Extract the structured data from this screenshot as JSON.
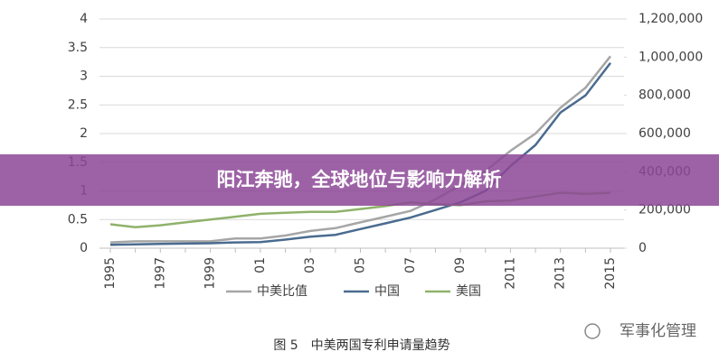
{
  "chart_data": {
    "type": "line",
    "categories": [
      "1995",
      null,
      "1997",
      null,
      "1999",
      null,
      "01",
      null,
      "03",
      null,
      "05",
      null,
      "07",
      null,
      "09",
      null,
      "2011",
      null,
      "2013",
      null,
      "2015"
    ],
    "series": [
      {
        "name": "中美比值",
        "color": "#a6a6a6",
        "values": [
          0.1,
          0.12,
          0.12,
          0.12,
          0.12,
          0.17,
          0.17,
          0.22,
          0.3,
          0.35,
          0.45,
          0.55,
          0.65,
          0.85,
          1.1,
          1.35,
          1.7,
          2.0,
          2.45,
          2.8,
          3.35
        ]
      },
      {
        "name": "中国",
        "color": "#4a6b8f",
        "axis": "y2",
        "values": [
          18000,
          20000,
          22000,
          24000,
          26000,
          30000,
          32000,
          45000,
          60000,
          70000,
          100000,
          130000,
          160000,
          200000,
          240000,
          300000,
          430000,
          540000,
          710000,
          800000,
          970000
        ]
      },
      {
        "name": "美国",
        "color": "#8fb26a",
        "axis": "y2",
        "values": [
          125000,
          110000,
          120000,
          135000,
          150000,
          165000,
          180000,
          185000,
          190000,
          190000,
          205000,
          220000,
          240000,
          230000,
          225000,
          245000,
          250000,
          270000,
          290000,
          285000,
          290000
        ]
      }
    ],
    "ylim": [
      0,
      4
    ],
    "yticks": [
      0,
      0.5,
      1,
      1.5,
      2,
      2.5,
      3,
      3.5,
      4
    ],
    "y2lim": [
      0,
      1200000
    ],
    "y2ticks": [
      0,
      {
        "value": 200000,
        "label": "200,000"
      },
      {
        "value": 400000,
        "label": "400,000"
      },
      {
        "value": 600000,
        "label": "600,000"
      },
      {
        "value": 800000,
        "label": "800,000"
      },
      {
        "value": 1000000,
        "label": "1,000,000"
      },
      {
        "value": 1200000,
        "label": "1,200,000"
      }
    ],
    "grid": true,
    "legend": "bottom"
  },
  "overlay_title": "阳江奔驰，全球地位与影响力解析",
  "caption": "图 5　中美两国专利申请量趋势",
  "watermark": "军事化管理"
}
